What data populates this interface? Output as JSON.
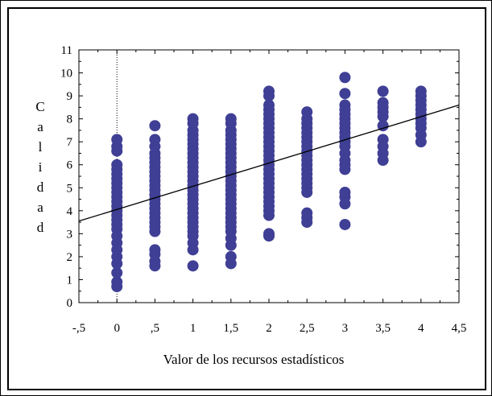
{
  "chart_data": {
    "type": "scatter",
    "xlabel": "Valor de los recursos estadísticos",
    "ylabel": "Calidad",
    "xlim": [
      -0.5,
      4.5
    ],
    "ylim": [
      0,
      11
    ],
    "x_ticks": [
      "-,5",
      "0",
      ",5",
      "1",
      "1,5",
      "2",
      "2,5",
      "3",
      "3,5",
      "4",
      "4,5"
    ],
    "y_ticks": [
      "0",
      "1",
      "2",
      "3",
      "4",
      "5",
      "6",
      "7",
      "8",
      "9",
      "10",
      "11"
    ],
    "reference_line_x": 0,
    "grid": false,
    "legend": "none",
    "point_color": "#3f3f95",
    "columns": [
      {
        "x": 0,
        "y_min": 0.7,
        "y_max": 7.1,
        "points": [
          0.7,
          0.9,
          1.3,
          1.7,
          2.0,
          2.3,
          2.6,
          2.9,
          3.2,
          3.4,
          3.6,
          3.8,
          4.0,
          4.2,
          4.4,
          4.6,
          4.8,
          5.0,
          5.2,
          5.4,
          5.6,
          5.8,
          6.0,
          6.6,
          6.8,
          7.1
        ]
      },
      {
        "x": 0.5,
        "y_min": 1.6,
        "y_max": 7.7,
        "points": [
          1.6,
          1.8,
          2.1,
          2.3,
          3.1,
          3.3,
          3.5,
          3.7,
          3.9,
          4.1,
          4.3,
          4.5,
          4.7,
          4.9,
          5.1,
          5.3,
          5.5,
          5.7,
          5.9,
          6.1,
          6.3,
          6.5,
          6.8,
          7.1,
          7.7
        ]
      },
      {
        "x": 1,
        "y_min": 1.6,
        "y_max": 8.0,
        "points": [
          1.6,
          2.3,
          2.6,
          2.9,
          3.1,
          3.3,
          3.5,
          3.7,
          3.9,
          4.1,
          4.3,
          4.5,
          4.7,
          4.9,
          5.1,
          5.3,
          5.5,
          5.7,
          5.9,
          6.1,
          6.3,
          6.5,
          6.7,
          6.9,
          7.1,
          7.3,
          7.5,
          7.8,
          8.0
        ]
      },
      {
        "x": 1.5,
        "y_min": 1.7,
        "y_max": 8.0,
        "points": [
          1.7,
          2.0,
          2.5,
          2.8,
          3.1,
          3.3,
          3.5,
          3.7,
          3.9,
          4.1,
          4.3,
          4.5,
          4.7,
          4.9,
          5.1,
          5.3,
          5.5,
          5.7,
          5.9,
          6.1,
          6.3,
          6.5,
          6.7,
          6.9,
          7.1,
          7.3,
          7.5,
          7.8,
          8.0
        ]
      },
      {
        "x": 2,
        "y_min": 2.9,
        "y_max": 9.2,
        "points": [
          2.9,
          3.0,
          3.8,
          4.0,
          4.2,
          4.4,
          4.6,
          4.8,
          5.0,
          5.2,
          5.4,
          5.6,
          5.8,
          6.0,
          6.2,
          6.4,
          6.6,
          6.8,
          7.0,
          7.2,
          7.4,
          7.6,
          7.8,
          8.0,
          8.2,
          8.4,
          8.6,
          9.0,
          9.2
        ]
      },
      {
        "x": 2.5,
        "y_min": 3.5,
        "y_max": 8.3,
        "points": [
          3.5,
          3.7,
          3.9,
          4.8,
          5.0,
          5.2,
          5.4,
          5.6,
          5.8,
          6.0,
          6.2,
          6.4,
          6.6,
          6.8,
          7.0,
          7.2,
          7.4,
          7.6,
          7.8,
          8.0,
          8.3
        ]
      },
      {
        "x": 3,
        "y_min": 3.4,
        "y_max": 9.8,
        "points": [
          3.4,
          4.3,
          4.6,
          4.8,
          5.8,
          6.0,
          6.2,
          6.5,
          6.8,
          7.0,
          7.2,
          7.4,
          7.6,
          7.8,
          8.0,
          8.2,
          8.4,
          8.6,
          9.1,
          9.8
        ]
      },
      {
        "x": 3.5,
        "y_min": 6.2,
        "y_max": 9.2,
        "points": [
          6.2,
          6.5,
          6.8,
          7.1,
          7.7,
          8.1,
          8.3,
          8.5,
          8.7,
          9.2
        ]
      },
      {
        "x": 4,
        "y_min": 7.0,
        "y_max": 9.2,
        "points": [
          7.0,
          7.3,
          7.6,
          7.8,
          8.0,
          8.2,
          8.4,
          8.6,
          8.8,
          9.0,
          9.2
        ]
      }
    ],
    "trend_line": {
      "x": [
        -0.5,
        4.5
      ],
      "y": [
        3.55,
        8.6
      ]
    }
  }
}
